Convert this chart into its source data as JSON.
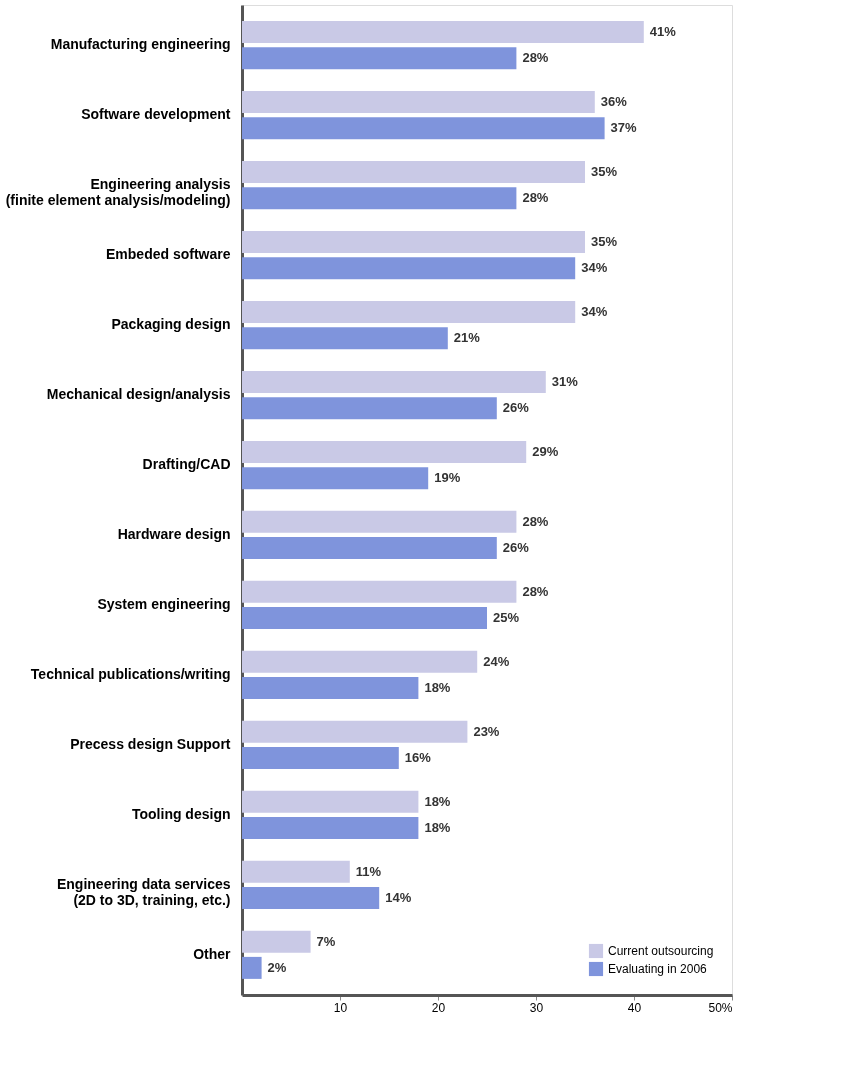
{
  "chart_data": {
    "type": "bar",
    "orientation": "horizontal",
    "categories": [
      "Manufacturing engineering",
      "Software development",
      "Engineering analysis\n(finite element analysis/modeling)",
      "Embeded software",
      "Packaging design",
      "Mechanical design/analysis",
      "Drafting/CAD",
      "Hardware design",
      "System engineering",
      "Technical publications/writing",
      "Precess design Support",
      "Tooling design",
      "Engineering data services\n(2D to 3D, training, etc.)",
      "Other"
    ],
    "series": [
      {
        "name": "Current outsourcing",
        "color": "#c9c9e6",
        "values": [
          41,
          36,
          35,
          35,
          34,
          31,
          29,
          28,
          28,
          24,
          23,
          18,
          11,
          7
        ],
        "value_labels": [
          "41%",
          "36%",
          "35%",
          "35%",
          "34%",
          "31%",
          "29%",
          "28%",
          "28%",
          "24%",
          "23%",
          "18%",
          "11%",
          "7%"
        ]
      },
      {
        "name": "Evaluating in 2006",
        "color": "#7f94dc",
        "values": [
          28,
          37,
          28,
          34,
          21,
          26,
          19,
          26,
          25,
          18,
          16,
          18,
          14,
          2
        ],
        "value_labels": [
          "28%",
          "37%",
          "28%",
          "34%",
          "21%",
          "26%",
          "19%",
          "26%",
          "25%",
          "18%",
          "16%",
          "18%",
          "14%",
          "2%"
        ]
      }
    ],
    "xlim": [
      0,
      50
    ],
    "xticks": [
      10,
      20,
      30,
      40,
      {
        "value": 50,
        "label": "50%"
      }
    ],
    "legend": "bottom right",
    "grid": false
  }
}
